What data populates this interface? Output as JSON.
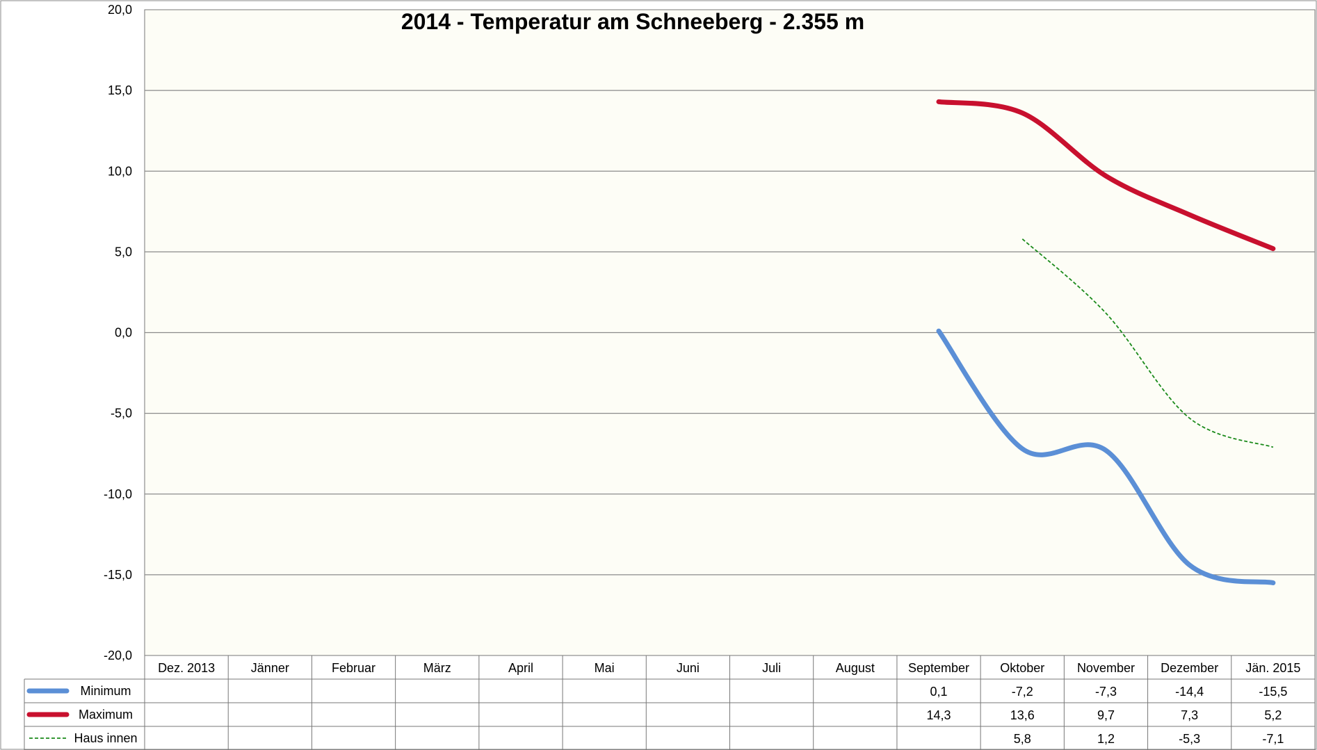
{
  "chart_data": {
    "type": "line",
    "title": "2014 - Temperatur am Schneeberg - 2.355 m",
    "categories": [
      "Dez. 2013",
      "Jänner",
      "Februar",
      "März",
      "April",
      "Mai",
      "Juni",
      "Juli",
      "August",
      "September",
      "Oktober",
      "November",
      "Dezember",
      "Jän. 2015"
    ],
    "ylim": [
      -20,
      20
    ],
    "yticks": [
      "20,0",
      "15,0",
      "10,0",
      "5,0",
      "0,0",
      "-5,0",
      "-10,0",
      "-15,0",
      "-20,0"
    ],
    "grid": true,
    "legend": "data-table",
    "series": [
      {
        "name": "Minimum",
        "color": "#5b8fd6",
        "style": "solid",
        "values": [
          null,
          null,
          null,
          null,
          null,
          null,
          null,
          null,
          null,
          0.1,
          -7.2,
          -7.3,
          -14.4,
          -15.5
        ],
        "labels": [
          "",
          "",
          "",
          "",
          "",
          "",
          "",
          "",
          "",
          "0,1",
          "-7,2",
          "-7,3",
          "-14,4",
          "-15,5"
        ]
      },
      {
        "name": "Maximum",
        "color": "#c8102e",
        "style": "solid",
        "values": [
          null,
          null,
          null,
          null,
          null,
          null,
          null,
          null,
          null,
          14.3,
          13.6,
          9.7,
          7.3,
          5.2
        ],
        "labels": [
          "",
          "",
          "",
          "",
          "",
          "",
          "",
          "",
          "",
          "14,3",
          "13,6",
          "9,7",
          "7,3",
          "5,2"
        ]
      },
      {
        "name": "Haus innen",
        "color": "#1a8a1a",
        "style": "dashed",
        "values": [
          null,
          null,
          null,
          null,
          null,
          null,
          null,
          null,
          null,
          null,
          5.8,
          1.2,
          -5.3,
          -7.1
        ],
        "labels": [
          "",
          "",
          "",
          "",
          "",
          "",
          "",
          "",
          "",
          "",
          "5,8",
          "1,2",
          "-5,3",
          "-7,1"
        ]
      }
    ]
  }
}
